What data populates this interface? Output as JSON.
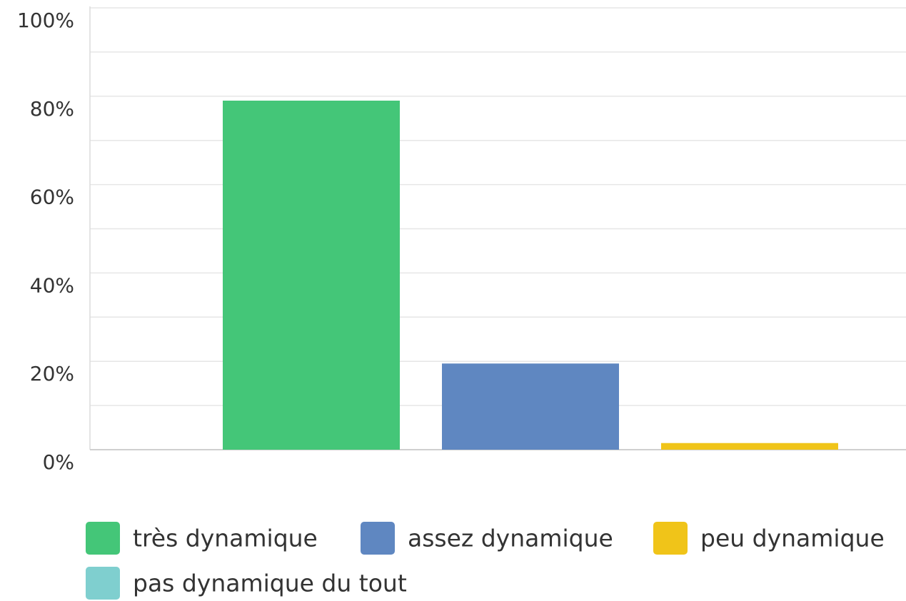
{
  "chart_data": {
    "type": "bar",
    "categories": [
      null
    ],
    "series": [
      {
        "name": "très dynamique",
        "color": "#44c678",
        "values": [
          79
        ]
      },
      {
        "name": "assez dynamique",
        "color": "#5f87c1",
        "values": [
          19.5
        ]
      },
      {
        "name": "peu dynamique",
        "color": "#f0c419",
        "values": [
          1.5
        ]
      },
      {
        "name": "pas dynamique du tout",
        "color": "#7fcfcf",
        "values": [
          0
        ]
      }
    ],
    "ylim": [
      0,
      100
    ],
    "yticks": [
      {
        "value": 0,
        "label": "0%"
      },
      {
        "value": 20,
        "label": "20%"
      },
      {
        "value": 40,
        "label": "40%"
      },
      {
        "value": 60,
        "label": "60%"
      },
      {
        "value": 80,
        "label": "80%"
      },
      {
        "value": 100,
        "label": "100%"
      }
    ],
    "minor_yticks": [
      10,
      30,
      50,
      70,
      90
    ],
    "grid": true,
    "legend": "bottom"
  }
}
